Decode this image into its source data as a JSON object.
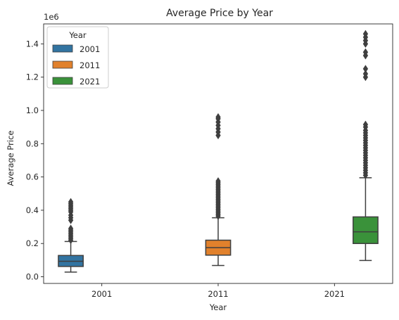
{
  "chart_data": {
    "type": "boxplot",
    "title": "Average Price by Year",
    "xlabel": "Year",
    "ylabel": "Average Price",
    "y_scale_label": "1e6",
    "ylim": [
      -0.04,
      1.52
    ],
    "yticks": [
      0.0,
      0.2,
      0.4,
      0.6,
      0.8,
      1.0,
      1.2,
      1.4
    ],
    "ytick_labels": [
      "0.0",
      "0.2",
      "0.4",
      "0.6",
      "0.8",
      "1.0",
      "1.2",
      "1.4"
    ],
    "categories": [
      "2001",
      "2011",
      "2021"
    ],
    "grid": false,
    "legend": {
      "title": "Year",
      "position": "top-left",
      "entries": [
        "2001",
        "2011",
        "2021"
      ]
    },
    "series": [
      {
        "name": "2001",
        "color": "#3274a1",
        "category_index": 0,
        "whisker_low": 0.028,
        "q1": 0.062,
        "median": 0.093,
        "q3": 0.128,
        "whisker_high": 0.212,
        "outliers": [
          0.22,
          0.23,
          0.24,
          0.25,
          0.26,
          0.27,
          0.28,
          0.29,
          0.34,
          0.355,
          0.37,
          0.39,
          0.4,
          0.41,
          0.42,
          0.43,
          0.44,
          0.45
        ]
      },
      {
        "name": "2011",
        "color": "#e1812c",
        "category_index": 1,
        "whisker_low": 0.068,
        "q1": 0.13,
        "median": 0.175,
        "q3": 0.22,
        "whisker_high": 0.355,
        "outliers": [
          0.365,
          0.375,
          0.385,
          0.395,
          0.405,
          0.415,
          0.425,
          0.435,
          0.445,
          0.455,
          0.465,
          0.475,
          0.485,
          0.495,
          0.505,
          0.515,
          0.525,
          0.535,
          0.545,
          0.555,
          0.565,
          0.575,
          0.85,
          0.87,
          0.89,
          0.91,
          0.93,
          0.95,
          0.96
        ]
      },
      {
        "name": "2021",
        "color": "#3a923a",
        "category_index": 2,
        "whisker_low": 0.098,
        "q1": 0.2,
        "median": 0.27,
        "q3": 0.36,
        "whisker_high": 0.595,
        "outliers": [
          0.61,
          0.625,
          0.64,
          0.655,
          0.67,
          0.685,
          0.7,
          0.715,
          0.73,
          0.745,
          0.76,
          0.775,
          0.79,
          0.805,
          0.82,
          0.835,
          0.85,
          0.865,
          0.88,
          0.9,
          0.915,
          1.2,
          1.22,
          1.25,
          1.33,
          1.35,
          1.4,
          1.42,
          1.44,
          1.46
        ]
      }
    ]
  }
}
